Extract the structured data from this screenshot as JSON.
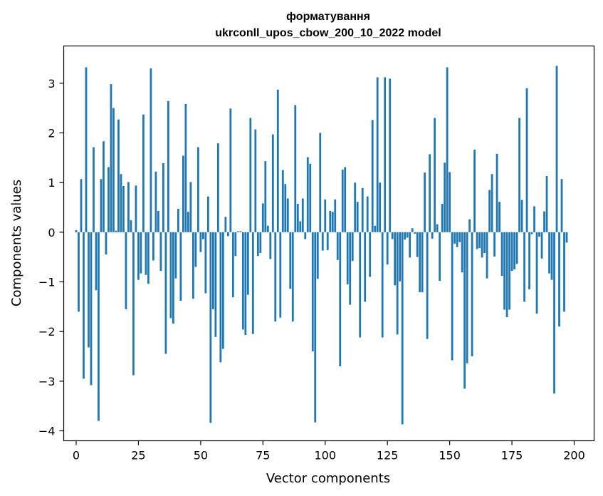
{
  "chart_data": {
    "type": "bar",
    "title": "форматування\nukrconll_upos_cbow_200_10_2022 model",
    "title_lines": [
      "форматування",
      "ukrconll_upos_cbow_200_10_2022 model"
    ],
    "xlabel": "Vector components",
    "ylabel": "Components values",
    "xlim": [
      -5,
      208
    ],
    "ylim": [
      -4.2,
      3.75
    ],
    "xticks": [
      0,
      25,
      50,
      75,
      100,
      125,
      150,
      175,
      200
    ],
    "yticks": [
      3,
      2,
      1,
      0,
      -1,
      -2,
      -3,
      -4
    ],
    "ytick_labels": [
      "3",
      "2",
      "1",
      "0",
      "−1",
      "−2",
      "−3",
      "−4"
    ],
    "grid": false,
    "bar_color": "#1f77b4",
    "values": [
      0.04,
      -1.6,
      1.07,
      -2.95,
      3.32,
      -2.32,
      -3.08,
      1.71,
      -1.17,
      -3.8,
      1.07,
      1.83,
      -0.45,
      1.31,
      2.98,
      2.5,
      0.03,
      2.27,
      1.17,
      0.93,
      -1.55,
      1.01,
      0.24,
      -2.88,
      0.94,
      -0.96,
      -0.83,
      2.37,
      -0.86,
      -1.04,
      3.3,
      -0.57,
      1.22,
      0.43,
      -0.78,
      1.39,
      -2.45,
      2.64,
      -1.73,
      -1.84,
      -0.93,
      0.47,
      -1.38,
      1.54,
      2.58,
      0.41,
      1.01,
      -1.34,
      -0.7,
      1.71,
      -0.4,
      -0.14,
      -1.23,
      0.72,
      -3.84,
      -1.55,
      -2.11,
      1.79,
      -2.62,
      -2.35,
      0.31,
      -0.08,
      2.49,
      -1.31,
      -0.48,
      0.02,
      0.02,
      -1.96,
      -2.07,
      -1.26,
      2.3,
      -2.05,
      2.07,
      -0.48,
      -0.42,
      0.58,
      1.43,
      0.13,
      -0.54,
      1.97,
      -1.8,
      2.87,
      -1.72,
      1.25,
      0.97,
      0.68,
      -1.14,
      -1.8,
      2.56,
      0.57,
      0.22,
      0.68,
      -0.14,
      1.51,
      1.38,
      -2.4,
      -3.83,
      -0.94,
      2.0,
      -0.37,
      0.66,
      -0.36,
      0.43,
      0.41,
      0.66,
      -0.56,
      -2.7,
      1.26,
      1.31,
      -1.05,
      -1.46,
      -0.58,
      1.0,
      0.61,
      -2.12,
      0.89,
      -1.4,
      0.72,
      -0.9,
      2.26,
      0.13,
      3.12,
      1.0,
      -2.12,
      3.12,
      -0.65,
      3.09,
      -0.14,
      -1.07,
      -2.06,
      -0.99,
      -3.87,
      -0.15,
      -0.11,
      -0.51,
      0.08,
      -0.03,
      -0.5,
      -1.21,
      -1.21,
      1.2,
      -2.15,
      1.57,
      -0.13,
      2.3,
      0.16,
      -0.98,
      0.57,
      1.4,
      3.32,
      1.21,
      -2.58,
      -0.23,
      -0.3,
      -0.2,
      -0.81,
      -3.15,
      -2.64,
      0.26,
      -2.5,
      1.66,
      -0.34,
      -0.32,
      -0.51,
      -0.42,
      -0.93,
      0.85,
      1.17,
      -0.49,
      1.58,
      0.61,
      -0.88,
      -1.56,
      -1.71,
      -1.56,
      -0.78,
      -0.75,
      -0.64,
      2.3,
      0.65,
      -1.4,
      2.9,
      -1.15,
      -0.04,
      0.52,
      -1.64,
      -0.09,
      -0.53,
      0.42,
      1.13,
      -0.83,
      -0.96,
      -3.25,
      3.35,
      -1.9,
      1.07,
      -1.6,
      -0.21
    ]
  }
}
